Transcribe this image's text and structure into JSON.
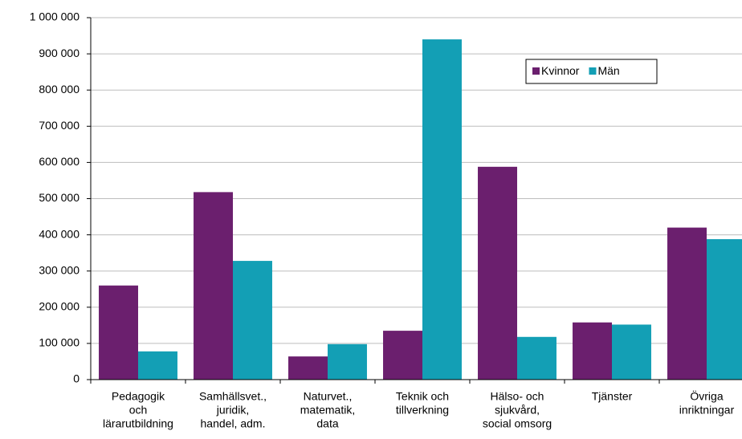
{
  "chart_data": {
    "type": "bar",
    "categories": [
      [
        "Pedagogik",
        "och",
        "lärarutbildning"
      ],
      [
        "Samhällsvet.,",
        "juridik,",
        "handel, adm."
      ],
      [
        "Naturvet.,",
        "matematik,",
        "data"
      ],
      [
        "Teknik och",
        "tillverkning"
      ],
      [
        "Hälso- och",
        "sjukvård,",
        "social omsorg"
      ],
      [
        "Tjänster"
      ],
      [
        "Övriga",
        "inriktningar"
      ]
    ],
    "series": [
      {
        "name": "Kvinnor",
        "color": "#6b1f6e",
        "values": [
          260000,
          518000,
          64000,
          135000,
          588000,
          158000,
          420000
        ]
      },
      {
        "name": "Män",
        "color": "#139fb5",
        "values": [
          78000,
          328000,
          98000,
          940000,
          118000,
          152000,
          388000
        ]
      }
    ],
    "ylim": [
      0,
      1000000
    ],
    "yticks": [
      0,
      {
        "value": 100000,
        "label": "100 000"
      },
      {
        "value": 200000,
        "label": "200 000"
      },
      {
        "value": 300000,
        "label": "300 000"
      },
      {
        "value": 400000,
        "label": "400 000"
      },
      {
        "value": 500000,
        "label": "500 000"
      },
      {
        "value": 600000,
        "label": "600 000"
      },
      {
        "value": 700000,
        "label": "700 000"
      },
      {
        "value": 800000,
        "label": "800 000"
      },
      {
        "value": 900000,
        "label": "900 000"
      },
      {
        "value": 1000000,
        "label": "1 000 000"
      }
    ],
    "grid": true,
    "legend": "upper right"
  }
}
